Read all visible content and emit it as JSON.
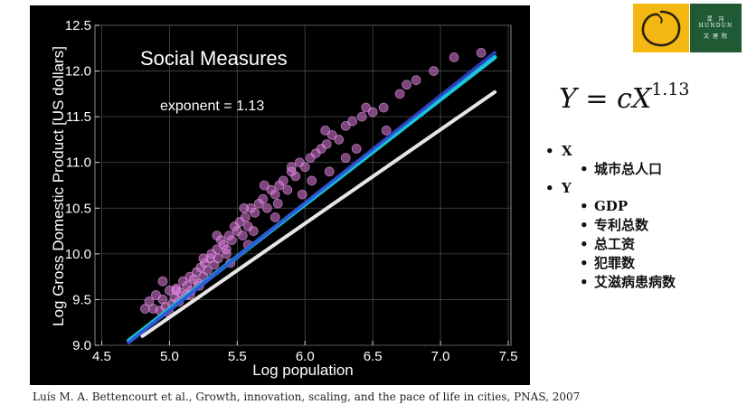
{
  "slide": {
    "formula": {
      "lhs": "Y = cX",
      "exponent": "1.13"
    },
    "variables": [
      {
        "label": "X",
        "items": [
          "城市总人口"
        ]
      },
      {
        "label": "Y",
        "items": [
          "GDP",
          "专利总数",
          "总工资",
          "犯罪数",
          "艾滋病患病数"
        ]
      }
    ],
    "citation": "Luís M. A. Bettencourt et al., Growth, innovation, scaling, and the pace of life in cities, PNAS, 2007",
    "logo": {
      "line1": "混  沌",
      "line2": "HUNDUN",
      "line3": "文 理 院"
    }
  },
  "chart_data": {
    "type": "scatter",
    "title": "Social Measures",
    "annotation": "exponent = 1.13",
    "xlabel": "Log population",
    "ylabel": "Log Gross Domestic Product [US dollars]",
    "xlim": [
      4.45,
      7.52
    ],
    "ylim": [
      9.0,
      12.5
    ],
    "xticks": [
      "4.5",
      "5.0",
      "5.5",
      "6.0",
      "6.5",
      "7.0",
      "7.5"
    ],
    "yticks": [
      "9.0",
      "9.5",
      "10.0",
      "10.5",
      "11.0",
      "11.5",
      "12.0",
      "12.5"
    ],
    "grid": true,
    "colors": {
      "background": "#000000",
      "points": "#e07be0",
      "fit_blue": "#2f49d6",
      "fit_cyan": "#19c8d8",
      "reference": "#e6e6e6"
    },
    "lines": [
      {
        "name": "",
        "color": "#19c8d8",
        "x": [
          4.7,
          7.4
        ],
        "y": [
          9.05,
          12.15
        ]
      },
      {
        "name": "",
        "color": "#2f49d6",
        "x": [
          4.7,
          7.4
        ],
        "y": [
          9.03,
          12.2
        ]
      },
      {
        "name": "",
        "color": "#e6e6e6",
        "x": [
          4.8,
          7.4
        ],
        "y": [
          9.1,
          11.77
        ]
      }
    ],
    "points": {
      "x": [
        4.85,
        4.88,
        4.9,
        4.93,
        4.95,
        4.97,
        5.0,
        5.02,
        5.04,
        5.05,
        5.07,
        5.08,
        5.1,
        5.12,
        5.13,
        5.15,
        5.16,
        5.18,
        5.2,
        5.21,
        5.23,
        5.25,
        5.26,
        5.28,
        5.3,
        5.31,
        5.33,
        5.35,
        5.36,
        5.38,
        5.4,
        5.42,
        5.44,
        5.46,
        5.48,
        5.5,
        5.52,
        5.54,
        5.56,
        5.58,
        5.6,
        5.63,
        5.66,
        5.69,
        5.72,
        5.75,
        5.78,
        5.81,
        5.84,
        5.87,
        5.9,
        5.93,
        5.96,
        6.0,
        6.04,
        6.08,
        6.12,
        6.16,
        6.2,
        6.25,
        6.3,
        6.35,
        6.42,
        6.5,
        6.58,
        6.7,
        6.82,
        6.95,
        7.1,
        7.3,
        4.82,
        4.95,
        5.05,
        5.15,
        5.25,
        5.35,
        5.45,
        5.55,
        5.62,
        5.7,
        5.8,
        5.9,
        6.05,
        6.15,
        6.3,
        6.45,
        6.6,
        6.75,
        5.0,
        5.22,
        5.42,
        5.58,
        5.78,
        5.98,
        6.18,
        6.38
      ],
      "y": [
        9.48,
        9.4,
        9.55,
        9.38,
        9.5,
        9.42,
        9.6,
        9.45,
        9.52,
        9.62,
        9.48,
        9.58,
        9.7,
        9.55,
        9.65,
        9.75,
        9.6,
        9.72,
        9.8,
        9.68,
        9.85,
        9.75,
        9.9,
        9.82,
        9.95,
        10.0,
        9.88,
        10.05,
        9.95,
        10.15,
        10.1,
        10.05,
        10.2,
        10.15,
        10.3,
        10.25,
        10.35,
        10.2,
        10.4,
        10.3,
        10.5,
        10.45,
        10.55,
        10.6,
        10.5,
        10.7,
        10.65,
        10.75,
        10.8,
        10.7,
        10.9,
        10.85,
        11.0,
        10.95,
        11.05,
        11.1,
        11.15,
        11.2,
        11.3,
        11.25,
        11.4,
        11.45,
        11.5,
        11.55,
        11.6,
        11.75,
        11.9,
        12.0,
        12.15,
        12.2,
        9.4,
        9.7,
        9.6,
        9.55,
        9.95,
        10.2,
        9.9,
        10.5,
        10.25,
        10.75,
        10.55,
        10.95,
        10.8,
        11.35,
        11.05,
        11.6,
        11.35,
        11.85,
        9.35,
        9.65,
        10.0,
        10.1,
        10.4,
        10.65,
        10.9,
        11.15
      ]
    }
  }
}
